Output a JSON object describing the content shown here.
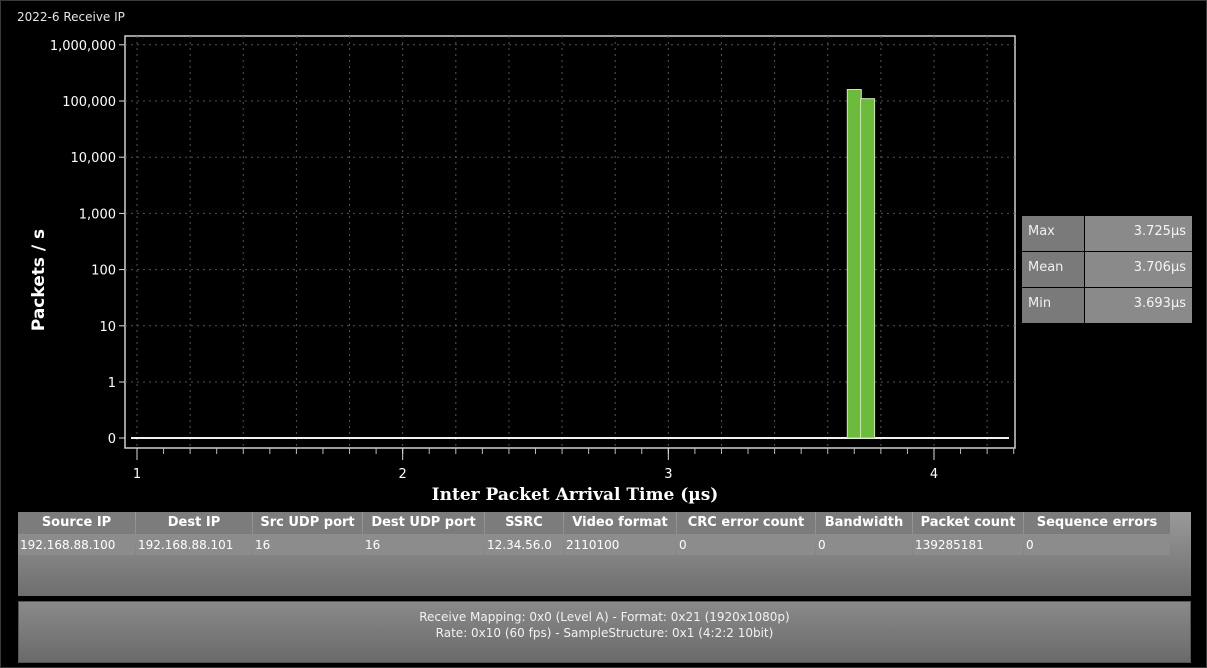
{
  "window": {
    "title": "2022-6 Receive IP"
  },
  "chart_data": {
    "type": "bar",
    "title": "",
    "xlabel": "Inter Packet Arrival Time (µs)",
    "ylabel": "Packets / s",
    "xlim": [
      1,
      4.3
    ],
    "y_scale": "log",
    "y_ticks": [
      {
        "value": 0,
        "label": "0"
      },
      {
        "value": 1,
        "label": "1"
      },
      {
        "value": 10,
        "label": "10"
      },
      {
        "value": 100,
        "label": "100"
      },
      {
        "value": 1000,
        "label": "1,000"
      },
      {
        "value": 10000,
        "label": "10,000"
      },
      {
        "value": 100000,
        "label": "100,000"
      },
      {
        "value": 1000000,
        "label": "1,000,000"
      }
    ],
    "x_ticks": [
      1,
      2,
      3,
      4
    ],
    "grid": true,
    "bars": [
      {
        "x": 3.7,
        "value": 160000
      },
      {
        "x": 3.75,
        "value": 110000
      }
    ],
    "bar_color": "#6dbb3c"
  },
  "stats": [
    {
      "label": "Max",
      "value": "3.725µs"
    },
    {
      "label": "Mean",
      "value": "3.706µs"
    },
    {
      "label": "Min",
      "value": "3.693µs"
    }
  ],
  "table": {
    "columns": [
      "Source IP",
      "Dest IP",
      "Src UDP port",
      "Dest UDP port",
      "SSRC",
      "Video format",
      "CRC error count",
      "Bandwidth",
      "Packet count",
      "Sequence errors"
    ],
    "rows": [
      [
        "192.168.88.100",
        "192.168.88.101",
        "16",
        "16",
        "12.34.56.0",
        "2110100",
        "0",
        "0",
        "139285181",
        "0"
      ]
    ]
  },
  "status": {
    "line1": "Receive Mapping: 0x0 (Level A) - Format: 0x21 (1920x1080p)",
    "line2": "Rate: 0x10 (60 fps) - SampleStructure: 0x1 (4:2:2 10bit)"
  }
}
